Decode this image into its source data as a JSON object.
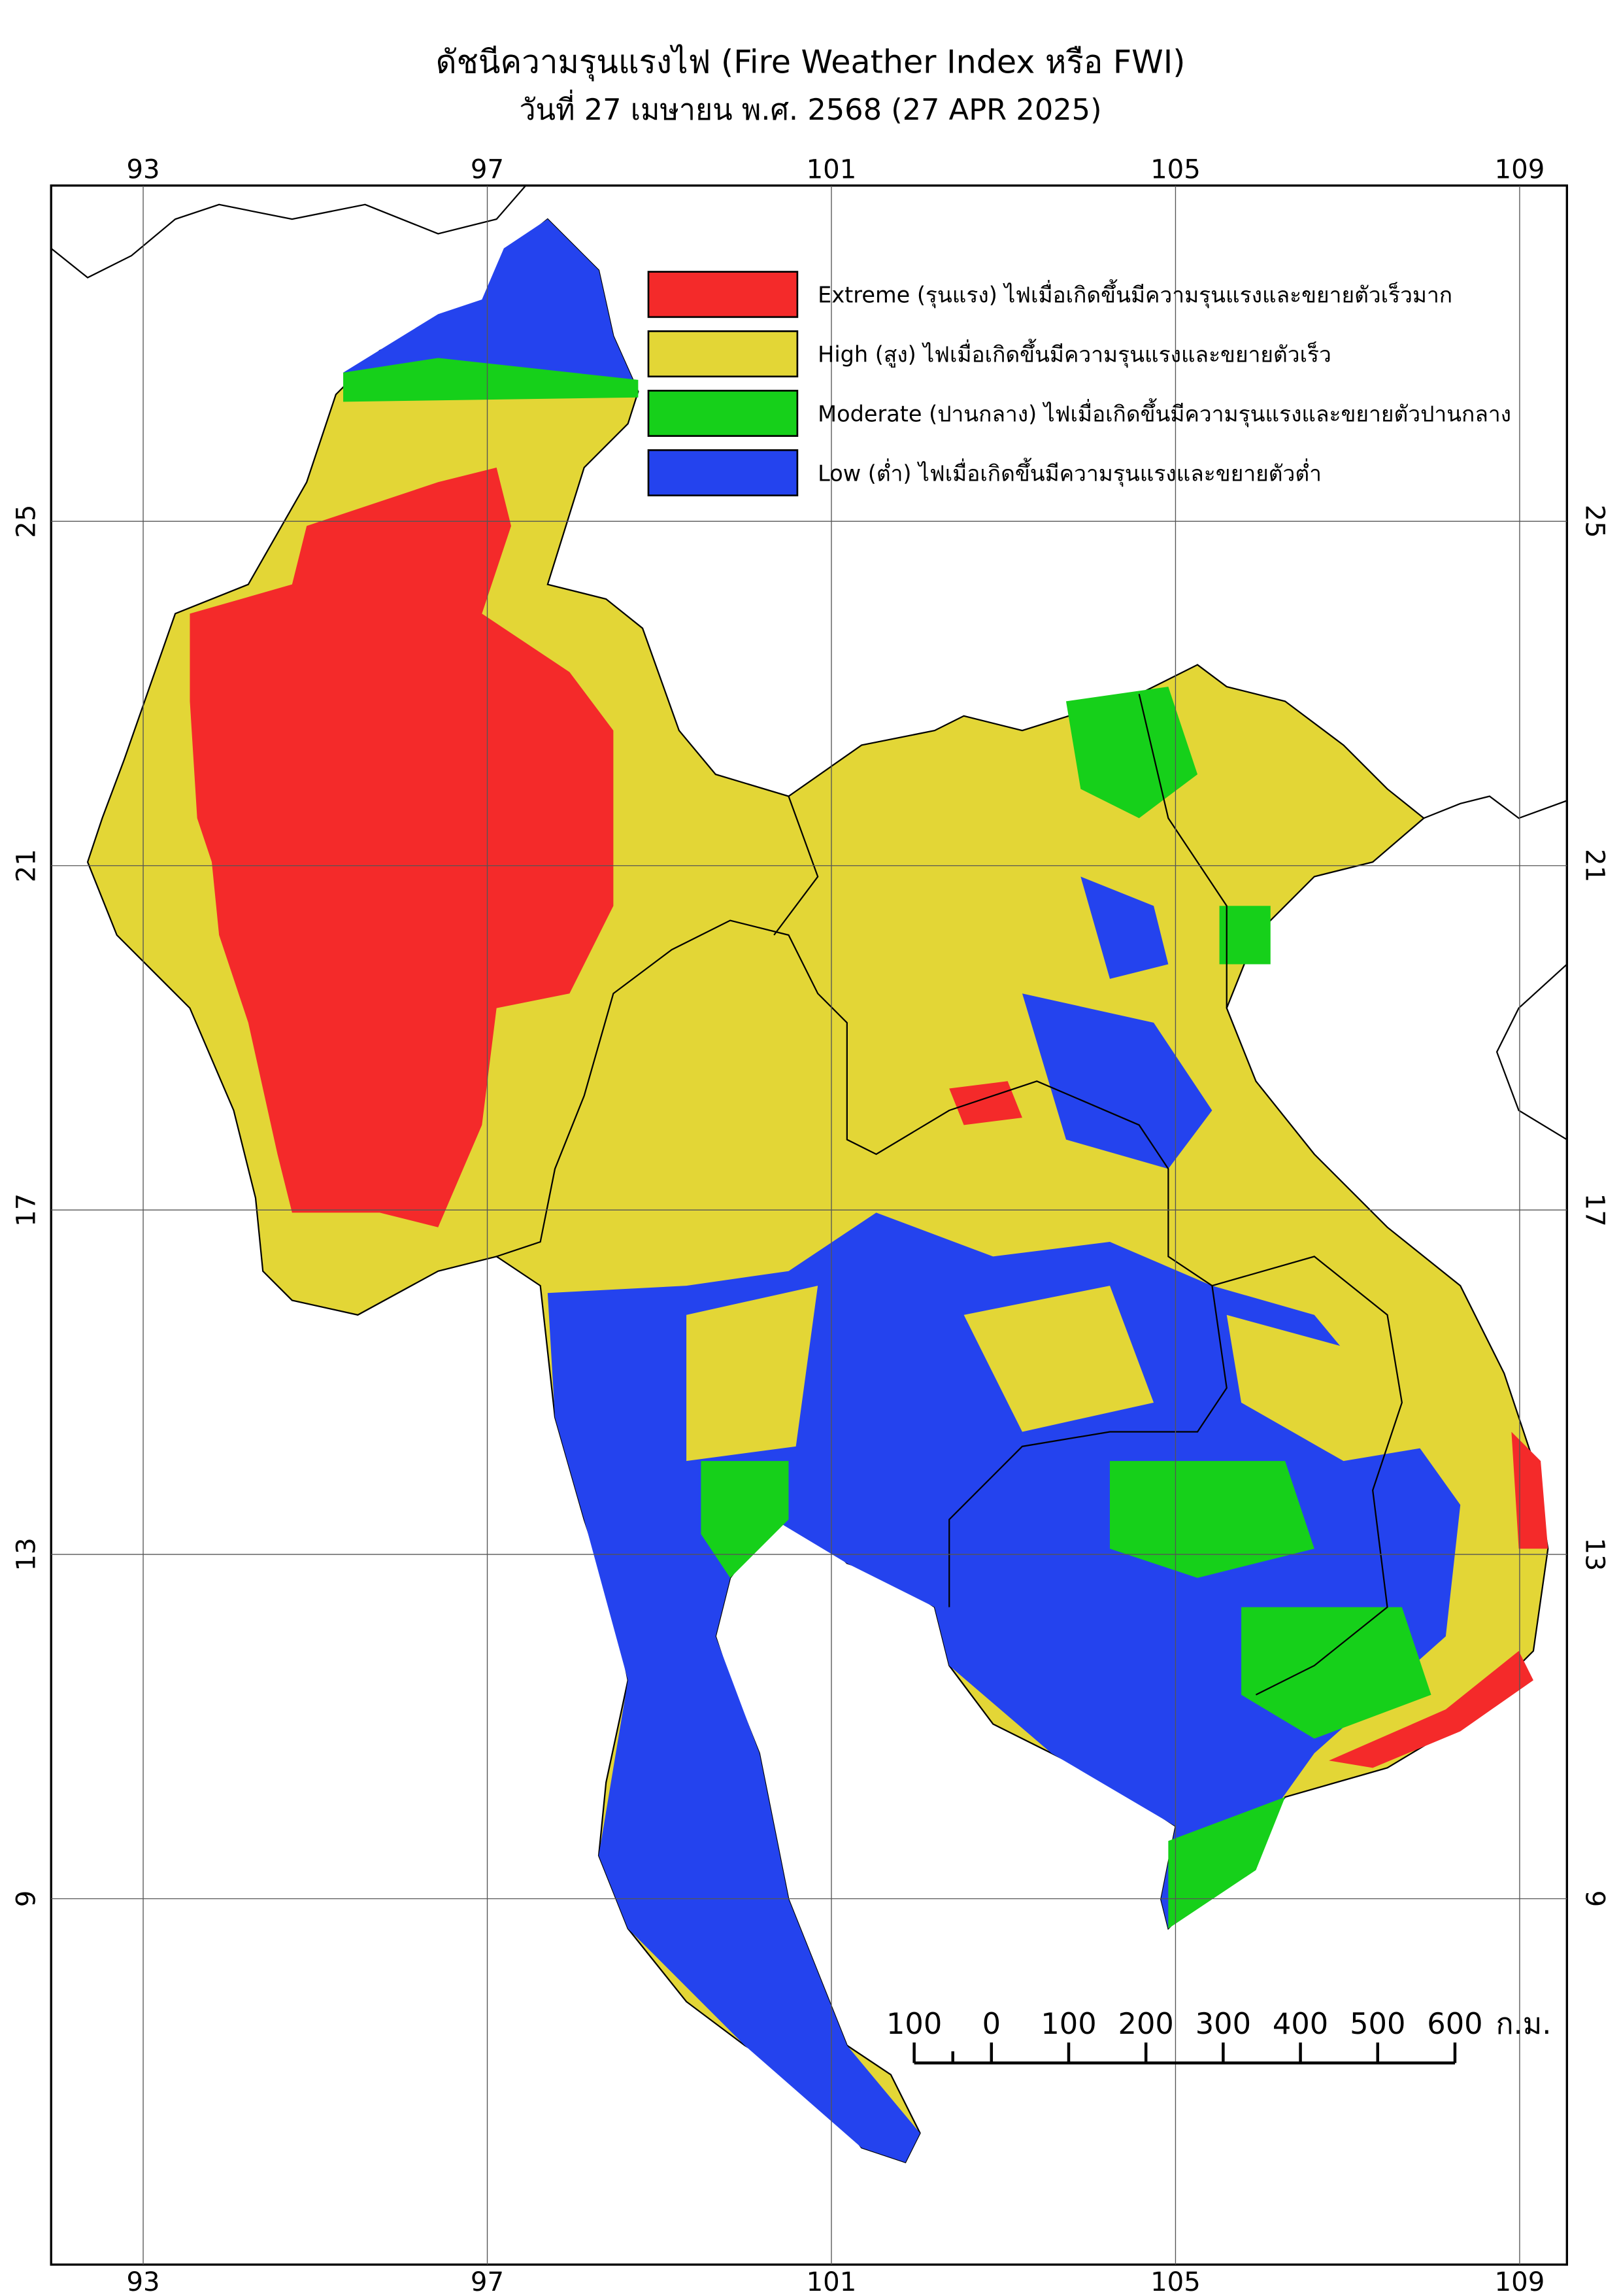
{
  "header": {
    "title": "ดัชนีความรุนแรงไฟ (Fire Weather Index หรือ FWI)",
    "subtitle": "วันที่ 27 เมษายน พ.ศ. 2568 (27 APR 2025)"
  },
  "map": {
    "lon_range": [
      91.93,
      109.55
    ],
    "lat_range": [
      28.9,
      4.75
    ],
    "lon_ticks": [
      93,
      97,
      101,
      105,
      109
    ],
    "lat_ticks": [
      25,
      21,
      17,
      13,
      9
    ],
    "legend": [
      {
        "label": "Extreme (รุนแรง) ไฟเมื่อเกิดขึ้นมีความรุนแรงและขยายตัวเร็วมาก",
        "color": "#f42a2a"
      },
      {
        "label": "High (สูง) ไฟเมื่อเกิดขึ้นมีความรุนแรงและขยายตัวเร็ว",
        "color": "#e3d636"
      },
      {
        "label": "Moderate (ปานกลาง) ไฟเมื่อเกิดขึ้นมีความรุนแรงและขยายตัวปานกลาง",
        "color": "#16d01a"
      },
      {
        "label": "Low (ต่ำ) ไฟเมื่อเกิดขึ้นมีความรุนแรงและขยายตัวต่ำ",
        "color": "#2443ee"
      }
    ],
    "scale_bar": {
      "labels": [
        "100",
        "0",
        "100",
        "200",
        "300",
        "400",
        "500",
        "600"
      ],
      "unit": "ก.ม."
    }
  }
}
